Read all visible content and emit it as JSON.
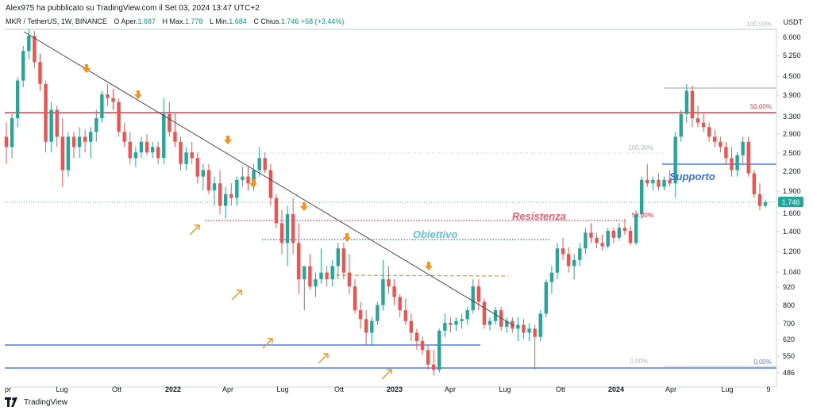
{
  "header": {
    "publisher": "Alex975 ha pubblicato su TradingView.com il Set 03, 2024 13:47 UTC+2",
    "symbol": "MKR / TetherUS, 1W, BINANCE",
    "open_label": "O",
    "open_text": "Aper.",
    "open_value": "1.687",
    "high_label": "H",
    "high_text": "Max.",
    "high_value": "1.778",
    "low_label": "L",
    "low_text": "Min.",
    "low_value": "1.684",
    "close_label": "C",
    "close_text": "Chius.",
    "close_value": "1.746",
    "change_value": "+58 (+3,44%)"
  },
  "footer": {
    "brand": "TradingView"
  },
  "colors": {
    "up": "#26a69a",
    "down": "#ef5350",
    "resistance": "#f23645",
    "support": "#4d7ee8",
    "target": "#2962ff",
    "trend": "#434651",
    "arrow": "#f7931a",
    "last_price_bg": "#26a69a"
  },
  "chart_data": {
    "type": "candlestick",
    "currency": "USDT",
    "scale": "log",
    "y_ticks": [
      "6.000",
      "5.250",
      "4.500",
      "3.900",
      "3.300",
      "2.900",
      "2.500",
      "2.200",
      "1.900",
      "1.600",
      "1.400",
      "1.200",
      "1.040",
      "920",
      "800",
      "700",
      "620",
      "550",
      "486"
    ],
    "x_ticks": [
      "pr",
      "Lug",
      "Ott",
      "2022",
      "Apr",
      "Lug",
      "Ott",
      "2023",
      "Apr",
      "Lug",
      "Ott",
      "2024",
      "Apr",
      "Lug",
      "9"
    ],
    "last_price": "1.746",
    "levels": [
      {
        "name": "resistance",
        "value": 3400
      },
      {
        "name": "resistance-dotted",
        "value": 1520
      },
      {
        "name": "target-dotted",
        "value": 1300
      },
      {
        "name": "orange-dashed",
        "value": 980
      },
      {
        "name": "support",
        "value": 600
      },
      {
        "name": "support-bottom",
        "value": 505
      },
      {
        "name": "support-2024",
        "value": 2300
      },
      {
        "name": "top-2024",
        "value": 4080
      },
      {
        "name": "fib-100-mid",
        "value": 2550
      }
    ],
    "annotations": [
      {
        "text": "Resistenza"
      },
      {
        "text": "Obiettivo"
      },
      {
        "text": "Supporto"
      },
      {
        "text": "100,00%"
      },
      {
        "text": "50,00%"
      },
      {
        "text": "100,00%"
      },
      {
        "text": "50,00%"
      },
      {
        "text": "0,00%"
      },
      {
        "text": "0,00%"
      }
    ],
    "trendline": [
      [
        5800,
        0
      ],
      [
        680,
        1
      ]
    ]
  }
}
